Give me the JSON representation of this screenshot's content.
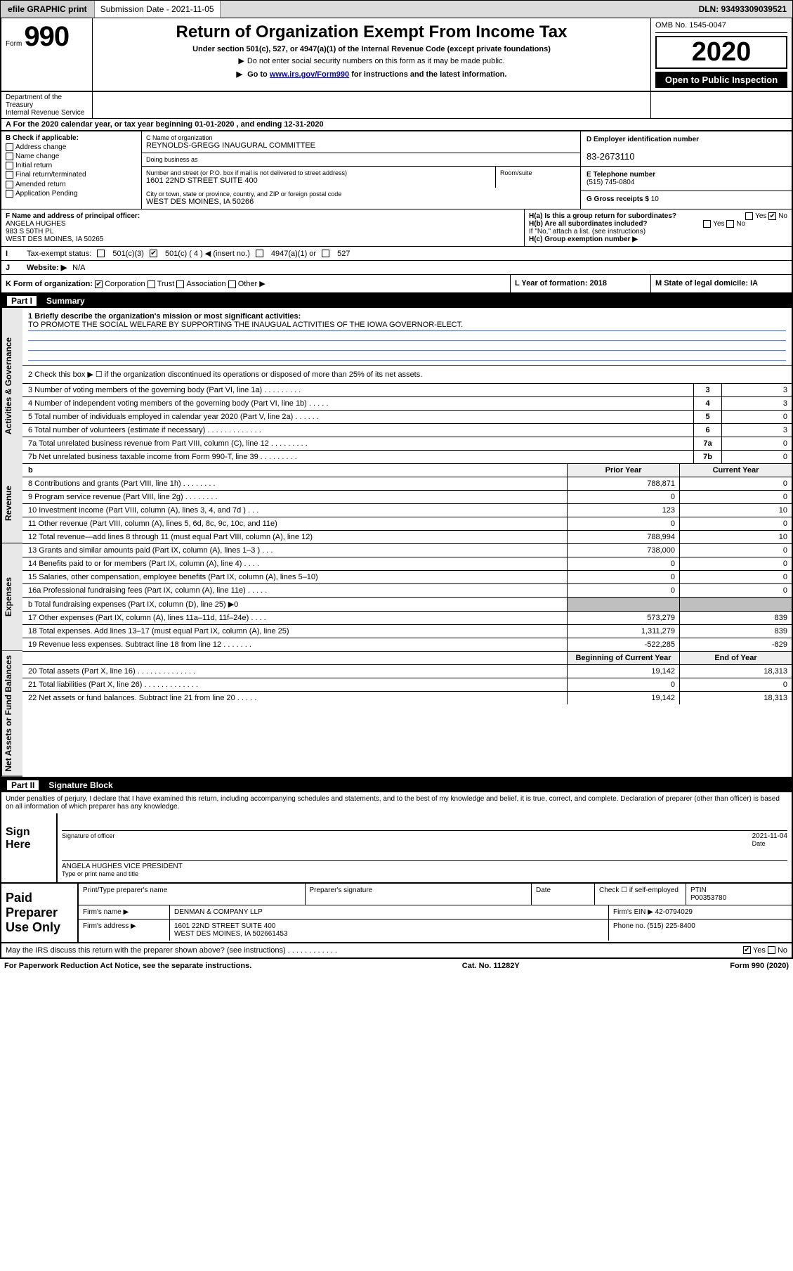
{
  "toolbar": {
    "efile_label": "efile GRAPHIC print",
    "subdate_label": "Submission Date - 2021-11-05",
    "dln_label": "DLN: 93493309039521"
  },
  "hdr": {
    "form_word": "Form",
    "form_no": "990",
    "title": "Return of Organization Exempt From Income Tax",
    "sub": "Under section 501(c), 527, or 4947(a)(1) of the Internal Revenue Code (except private foundations)",
    "note": "Do not enter social security numbers on this form as it may be made public.",
    "goto_pre": "Go to ",
    "goto_link": "www.irs.gov/Form990",
    "goto_post": " for instructions and the latest information.",
    "omb": "OMB No. 1545-0047",
    "year": "2020",
    "open": "Open to Public Inspection",
    "dept": "Department of the Treasury",
    "irs": "Internal Revenue Service"
  },
  "lineA": "For the 2020 calendar year, or tax year beginning 01-01-2020    , and ending 12-31-2020",
  "ent": {
    "B_label": "B Check if applicable:",
    "addr_change": "Address change",
    "name_change": "Name change",
    "initial": "Initial return",
    "final": "Final return/terminated",
    "amended": "Amended return",
    "app_pend": "Application Pending",
    "C_lbl": "C Name of organization",
    "C_val": "REYNOLDS-GREGG INAUGURAL COMMITTEE",
    "dba_lbl": "Doing business as",
    "street_lbl": "Number and street (or P.O. box if mail is not delivered to street address)",
    "room_lbl": "Room/suite",
    "street_val": "1601 22ND STREET SUITE 400",
    "city_lbl": "City or town, state or province, country, and ZIP or foreign postal code",
    "city_val": "WEST DES MOINES, IA  50266",
    "D_lbl": "D Employer identification number",
    "D_val": "83-2673110",
    "E_lbl": "E Telephone number",
    "E_val": "(515) 745-0804",
    "G_lbl": "G Gross receipts $",
    "G_val": "10"
  },
  "off": {
    "F_lbl": "F  Name and address of principal officer:",
    "name": "ANGELA HUGHES",
    "addr1": "983 S 50TH PL",
    "addr2": "WEST DES MOINES, IA  50265",
    "Ha": "H(a)  Is this a group return for subordinates?",
    "Hb": "H(b)  Are all subordinates included?",
    "Hnote": "If \"No,\" attach a list. (see instructions)",
    "Hc": "H(c)  Group exemption number ▶",
    "yes": "Yes",
    "no": "No"
  },
  "I": {
    "lbl": "Tax-exempt status:",
    "c3": "501(c)(3)",
    "c": "501(c) ( 4 ) ◀ (insert no.)",
    "a1": "4947(a)(1) or",
    "s527": "527"
  },
  "J": {
    "lbl": "Website: ▶",
    "val": "N/A"
  },
  "Krow": {
    "K_lbl": "K Form of organization:",
    "corp": "Corporation",
    "trust": "Trust",
    "assoc": "Association",
    "other": "Other ▶",
    "L_lbl": "L Year of formation: 2018",
    "M_lbl": "M State of legal domicile: IA"
  },
  "partI": {
    "hdr": "Summary",
    "l1_lbl": "1  Briefly describe the organization's mission or most significant activities:",
    "l1_val": "TO PROMOTE THE SOCIAL WELFARE BY SUPPORTING THE INAUGUAL ACTIVITIES OF THE IOWA GOVERNOR-ELECT.",
    "l2": "2   Check this box ▶ ☐  if the organization discontinued its operations or disposed of more than 25% of its net assets.",
    "vlab_gov": "Activities & Governance",
    "vlab_rev": "Revenue",
    "vlab_exp": "Expenses",
    "vlab_na": "Net Assets or Fund Balances",
    "lines3_7": [
      {
        "n": "3",
        "t": "Number of voting members of the governing body (Part VI, line 1a)   .    .    .    .    .    .    .    .    .",
        "v": "3"
      },
      {
        "n": "4",
        "t": "Number of independent voting members of the governing body (Part VI, line 1b)  .    .    .    .    .",
        "v": "3"
      },
      {
        "n": "5",
        "t": "Total number of individuals employed in calendar year 2020 (Part V, line 2a)   .    .    .    .    .    .",
        "v": "0"
      },
      {
        "n": "6",
        "t": "Total number of volunteers (estimate if necessary)   .    .    .    .    .    .    .    .    .    .    .    .    .",
        "v": "3"
      },
      {
        "n": "7a",
        "t": "Total unrelated business revenue from Part VIII, column (C), line 12  .    .    .    .    .    .    .    .    .",
        "v": "0"
      },
      {
        "n": "7b",
        "t": "Net unrelated business taxable income from Form 990-T, line 39   .    .    .    .    .    .    .    .    .",
        "v": "0"
      }
    ],
    "col_prior": "Prior Year",
    "col_curr": "Current Year",
    "rev": [
      {
        "n": "8",
        "t": "Contributions and grants (Part VIII, line 1h)   .    .    .    .    .    .    .    .",
        "p": "788,871",
        "c": "0"
      },
      {
        "n": "9",
        "t": "Program service revenue (Part VIII, line 2g)   .    .    .    .    .    .    .    .",
        "p": "0",
        "c": "0"
      },
      {
        "n": "10",
        "t": "Investment income (Part VIII, column (A), lines 3, 4, and 7d )   .    .    .",
        "p": "123",
        "c": "10"
      },
      {
        "n": "11",
        "t": "Other revenue (Part VIII, column (A), lines 5, 6d, 8c, 9c, 10c, and 11e)",
        "p": "0",
        "c": "0"
      },
      {
        "n": "12",
        "t": "Total revenue—add lines 8 through 11 (must equal Part VIII, column (A), line 12)",
        "p": "788,994",
        "c": "10"
      }
    ],
    "exp": [
      {
        "n": "13",
        "t": "Grants and similar amounts paid (Part IX, column (A), lines 1–3 )   .    .    .",
        "p": "738,000",
        "c": "0"
      },
      {
        "n": "14",
        "t": "Benefits paid to or for members (Part IX, column (A), line 4)   .    .    .    .",
        "p": "0",
        "c": "0"
      },
      {
        "n": "15",
        "t": "Salaries, other compensation, employee benefits (Part IX, column (A), lines 5–10)",
        "p": "0",
        "c": "0"
      },
      {
        "n": "16a",
        "t": "Professional fundraising fees (Part IX, column (A), line 11e)   .    .    .    .    .",
        "p": "0",
        "c": "0"
      },
      {
        "n": "b",
        "t": "Total fundraising expenses (Part IX, column (D), line 25) ▶0",
        "p": "",
        "c": "",
        "shade": true
      },
      {
        "n": "17",
        "t": "Other expenses (Part IX, column (A), lines 11a–11d, 11f–24e)   .    .    .    .",
        "p": "573,279",
        "c": "839"
      },
      {
        "n": "18",
        "t": "Total expenses. Add lines 13–17 (must equal Part IX, column (A), line 25)",
        "p": "1,311,279",
        "c": "839"
      },
      {
        "n": "19",
        "t": "Revenue less expenses. Subtract line 18 from line 12   .    .    .    .    .    .    .",
        "p": "-522,285",
        "c": "-829"
      }
    ],
    "na_hdr_p": "Beginning of Current Year",
    "na_hdr_c": "End of Year",
    "na": [
      {
        "n": "20",
        "t": "Total assets (Part X, line 16)   .    .    .    .    .    .    .    .    .    .    .    .    .    .",
        "p": "19,142",
        "c": "18,313"
      },
      {
        "n": "21",
        "t": "Total liabilities (Part X, line 26)   .    .    .    .    .    .    .    .    .    .    .    .    .",
        "p": "0",
        "c": "0"
      },
      {
        "n": "22",
        "t": "Net assets or fund balances. Subtract line 21 from line 20   .    .    .    .    .",
        "p": "19,142",
        "c": "18,313"
      }
    ]
  },
  "partII": {
    "hdr": "Signature Block",
    "perjury": "Under penalties of perjury, I declare that I have examined this return, including accompanying schedules and statements, and to the best of my knowledge and belief, it is true, correct, and complete. Declaration of preparer (other than officer) is based on all information of which preparer has any knowledge."
  },
  "sig": {
    "lab": "Sign Here",
    "sig_of": "Signature of officer",
    "date": "2021-11-04",
    "date_lbl": "Date",
    "typed": "ANGELA HUGHES  VICE PRESIDENT",
    "typed_lbl": "Type or print name and title"
  },
  "prep": {
    "lab": "Paid Preparer Use Only",
    "c1": "Print/Type preparer's name",
    "c2": "Preparer's signature",
    "c3": "Date",
    "c4_a": "Check ☐ if self-employed",
    "c5_lbl": "PTIN",
    "c5_val": "P00353780",
    "firm_lbl": "Firm's name    ▶",
    "firm_val": "DENMAN & COMPANY LLP",
    "ein_lbl": "Firm's EIN ▶",
    "ein_val": "42-0794029",
    "addr_lbl": "Firm's address ▶",
    "addr_val1": "1601 22ND STREET SUITE 400",
    "addr_val2": "WEST DES MOINES, IA  502661453",
    "phone_lbl": "Phone no.",
    "phone_val": "(515) 225-8400"
  },
  "discuss": {
    "q": "May the IRS discuss this return with the preparer shown above? (see instructions)   .    .    .    .    .    .    .    .    .    .    .    .",
    "yes": "Yes",
    "no": "No"
  },
  "footer": {
    "pra": "For Paperwork Reduction Act Notice, see the separate instructions.",
    "cat": "Cat. No. 11282Y",
    "form": "Form 990 (2020)"
  }
}
